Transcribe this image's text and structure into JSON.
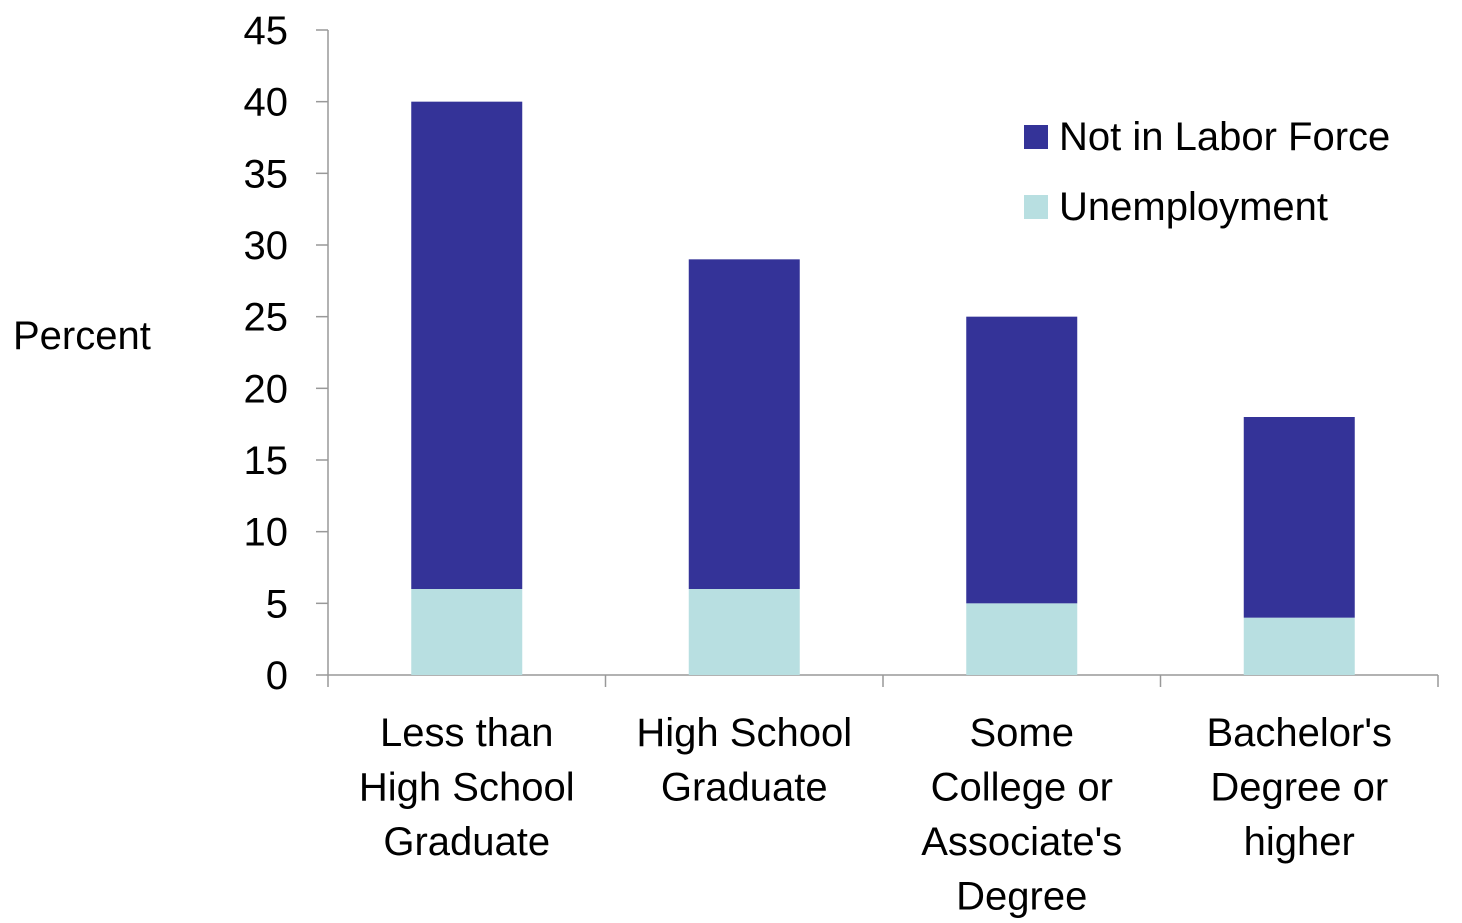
{
  "chart_data": {
    "type": "bar",
    "stacked": true,
    "title": "",
    "xlabel": "",
    "ylabel": "Percent",
    "ylim": [
      0,
      45
    ],
    "ytick_step": 5,
    "yticks": [
      "0",
      "5",
      "10",
      "15",
      "20",
      "25",
      "30",
      "35",
      "40",
      "45"
    ],
    "grid": false,
    "legend_position": "top-right",
    "categories": [
      [
        "Less than",
        "High School",
        "Graduate"
      ],
      [
        "High School",
        "Graduate"
      ],
      [
        "Some",
        "College or",
        "Associate's",
        "Degree"
      ],
      [
        "Bachelor's",
        "Degree or",
        "higher"
      ]
    ],
    "series": [
      {
        "name": "Unemployment",
        "color": "#b8dfe1",
        "values": [
          6,
          6,
          5,
          4
        ]
      },
      {
        "name": "Not in Labor Force",
        "color": "#343398",
        "values": [
          34,
          23,
          20,
          14
        ]
      }
    ],
    "legend_order": [
      "Not in Labor Force",
      "Unemployment"
    ]
  }
}
